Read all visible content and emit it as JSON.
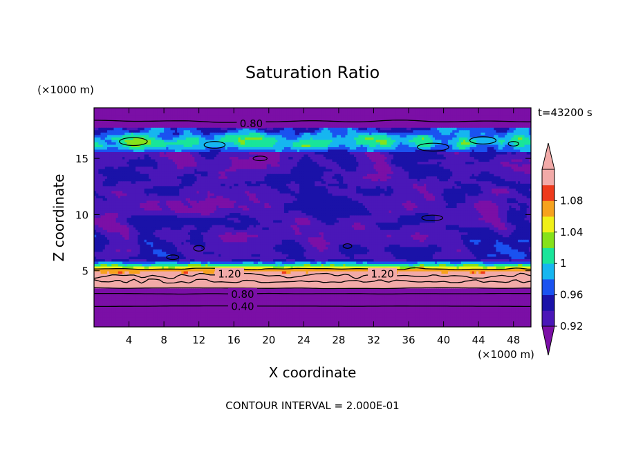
{
  "chart_data": {
    "type": "heatmap",
    "title": "Saturation Ratio",
    "xlabel": "X coordinate",
    "ylabel": "Z coordinate",
    "x_unit": "(×1000 m)",
    "y_unit": "(×1000 m)",
    "time_label": "t=43200 s",
    "footer": "CONTOUR INTERVAL = 2.000E-01",
    "xlim": [
      0,
      50
    ],
    "ylim": [
      0,
      19.5
    ],
    "x_ticks": [
      4,
      8,
      12,
      16,
      20,
      24,
      28,
      32,
      36,
      40,
      44,
      48
    ],
    "y_ticks": [
      5,
      10,
      15
    ],
    "colorbar": {
      "labels": [
        "0.92",
        "0.96",
        "1",
        "1.04",
        "1.08"
      ],
      "levels": [
        0.92,
        0.94,
        0.96,
        0.98,
        1.0,
        1.02,
        1.04,
        1.06,
        1.08,
        1.1
      ],
      "colors": [
        "#4a17b8",
        "#1a12a8",
        "#1a52f0",
        "#16b6f0",
        "#19e59a",
        "#86e21a",
        "#f0f018",
        "#f6a21e",
        "#ee3a1c",
        "#f2aaa8"
      ],
      "under_color": "#7b0fa6",
      "over_color": "#f2aaa8"
    },
    "bands": [
      {
        "z_from": 18.8,
        "z_to": 19.5,
        "class": "below"
      },
      {
        "z_from": 17.8,
        "z_to": 18.8,
        "class": "below"
      },
      {
        "z_from": 15.5,
        "z_to": 17.8,
        "class": "near"
      },
      {
        "z_from": 6.0,
        "z_to": 15.5,
        "class": "mixed"
      },
      {
        "z_from": 5.0,
        "z_to": 6.0,
        "class": "rise"
      },
      {
        "z_from": 3.4,
        "z_to": 5.0,
        "class": "over"
      },
      {
        "z_from": 0.0,
        "z_to": 3.4,
        "class": "below"
      }
    ],
    "contour_labels": [
      {
        "text": "0.80",
        "x": 18.0,
        "z": 18.1
      },
      {
        "text": "1.20",
        "x": 15.5,
        "z": 4.7
      },
      {
        "text": "1.20",
        "x": 33.0,
        "z": 4.7
      },
      {
        "text": "0.80",
        "x": 17.0,
        "z": 2.9
      },
      {
        "text": "0.40",
        "x": 17.0,
        "z": 1.8
      }
    ]
  }
}
